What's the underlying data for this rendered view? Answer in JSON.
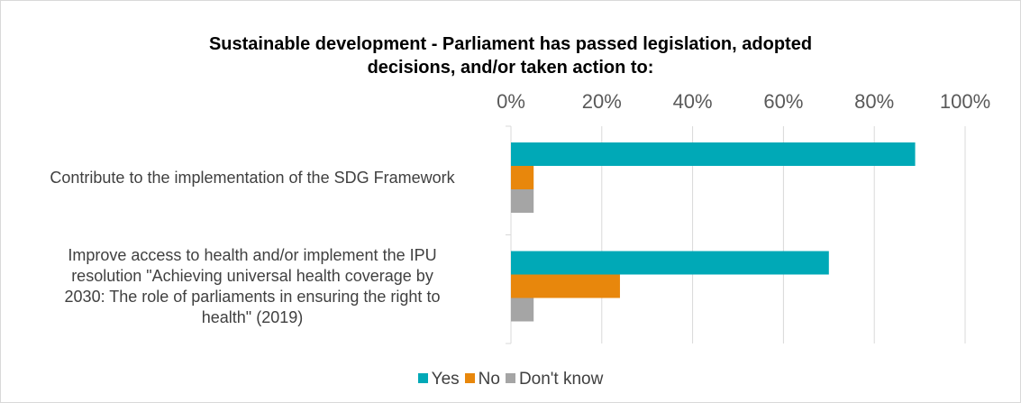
{
  "chart_data": {
    "type": "bar",
    "orientation": "horizontal",
    "title": "Sustainable development - Parliament has passed legislation, adopted\ndecisions, and/or taken action to:",
    "categories": [
      "Contribute to the implementation of the SDG Framework",
      "Improve access to health and/or implement the IPU resolution \"Achieving universal health coverage by 2030: The role of parliaments in ensuring the right to health\" (2019)"
    ],
    "category_lines": [
      [
        "Contribute to the implementation of the SDG Framework"
      ],
      [
        "Improve access to health and/or implement the IPU",
        "resolution \"Achieving universal health coverage by",
        "2030: The role of parliaments in ensuring the right to",
        "health\" (2019)"
      ]
    ],
    "series": [
      {
        "name": "Yes",
        "color": "#00a9b7",
        "values": [
          89,
          70
        ]
      },
      {
        "name": "No",
        "color": "#e8870c",
        "values": [
          5,
          24
        ]
      },
      {
        "name": "Don't know",
        "color": "#a5a5a5",
        "values": [
          5,
          5
        ]
      }
    ],
    "xlim": [
      0,
      100
    ],
    "x_ticks": [
      "0%",
      "20%",
      "40%",
      "60%",
      "80%",
      "100%"
    ],
    "x_tick_values": [
      0,
      20,
      40,
      60,
      80,
      100
    ],
    "x_axis_position": "top",
    "grid": true,
    "legend_position": "bottom"
  }
}
